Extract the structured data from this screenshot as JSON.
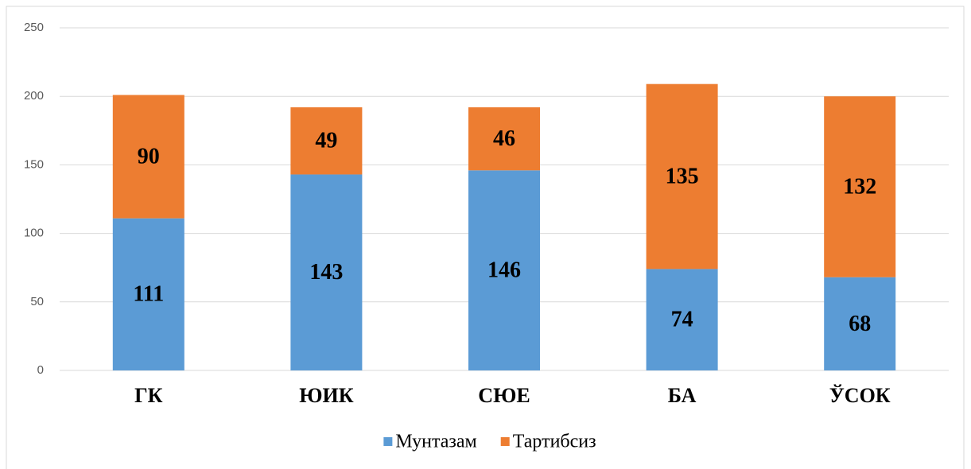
{
  "chart_data": {
    "type": "stacked_bar",
    "categories": [
      "ГК",
      "ЮИК",
      "СЮЕ",
      "БА",
      "ЎСОК"
    ],
    "series": [
      {
        "name": "Мунтазам",
        "color": "#5b9bd5",
        "values": [
          111,
          143,
          146,
          74,
          68
        ]
      },
      {
        "name": "Тартибсиз",
        "color": "#ed7d31",
        "values": [
          90,
          49,
          46,
          135,
          132
        ]
      }
    ],
    "ylim": [
      0,
      250
    ],
    "yticks": [
      0,
      50,
      100,
      150,
      200,
      250
    ],
    "grid": true,
    "legend": "bottom"
  }
}
